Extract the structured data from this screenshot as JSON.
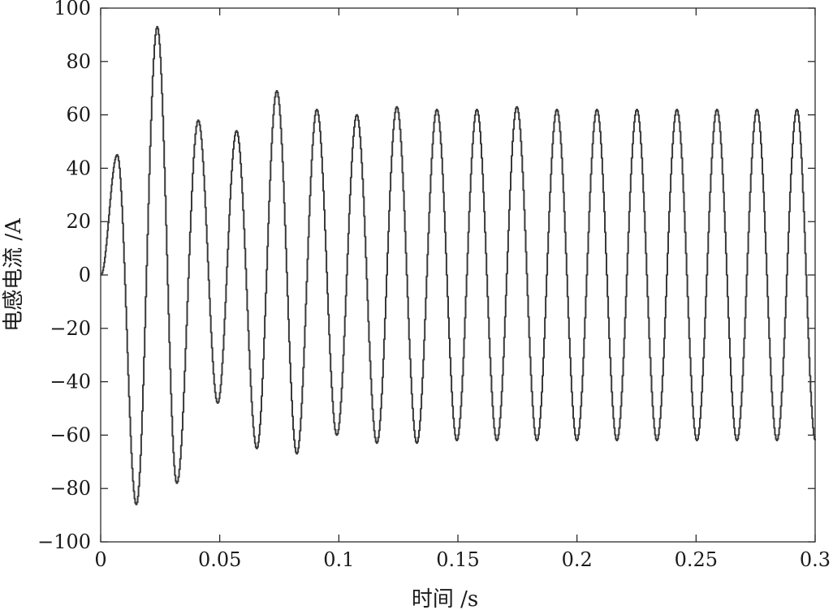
{
  "chart_data": {
    "type": "line",
    "title": "",
    "xlabel": "时间 /s",
    "ylabel": "电感电流 /A",
    "xlim": [
      0,
      0.3
    ],
    "ylim": [
      -100,
      100
    ],
    "xticks": [
      0,
      0.05,
      0.1,
      0.15,
      0.2,
      0.25,
      0.3
    ],
    "xtick_labels": [
      "0",
      "0.05",
      "0.1",
      "0.15",
      "0.2",
      "0.25",
      "0.3"
    ],
    "yticks": [
      -100,
      -80,
      -60,
      -40,
      -20,
      0,
      20,
      40,
      60,
      80,
      100
    ],
    "ytick_labels": [
      "−100",
      "−80",
      "−60",
      "−40",
      "−20",
      "0",
      "20",
      "40",
      "60",
      "80",
      "100"
    ],
    "grid": false,
    "line_color": "#3a3a3a",
    "series": [
      {
        "x": [
          0.0,
          0.0068,
          0.0148,
          0.0236,
          0.0318,
          0.0408,
          0.049,
          0.0569,
          0.0654,
          0.0738,
          0.0822,
          0.0906,
          0.099,
          0.1074,
          0.1158,
          0.1242,
          0.1326,
          0.141,
          0.1494,
          0.1578,
          0.1662,
          0.1746,
          0.183,
          0.1914,
          0.1998,
          0.2082,
          0.2166,
          0.225,
          0.2334,
          0.2418,
          0.2502,
          0.2586,
          0.267,
          0.2754,
          0.2838,
          0.2922,
          0.3
        ],
        "y": [
          0,
          45,
          -86,
          93,
          -78,
          58,
          -48,
          54,
          -65,
          69,
          -67,
          62,
          -60,
          60,
          -63,
          63,
          -63,
          62,
          -62,
          62,
          -62,
          63,
          -62,
          62,
          -62,
          62,
          -62,
          62,
          -62,
          62,
          -62,
          62,
          -62,
          62,
          -62,
          62,
          -62
        ]
      }
    ]
  }
}
